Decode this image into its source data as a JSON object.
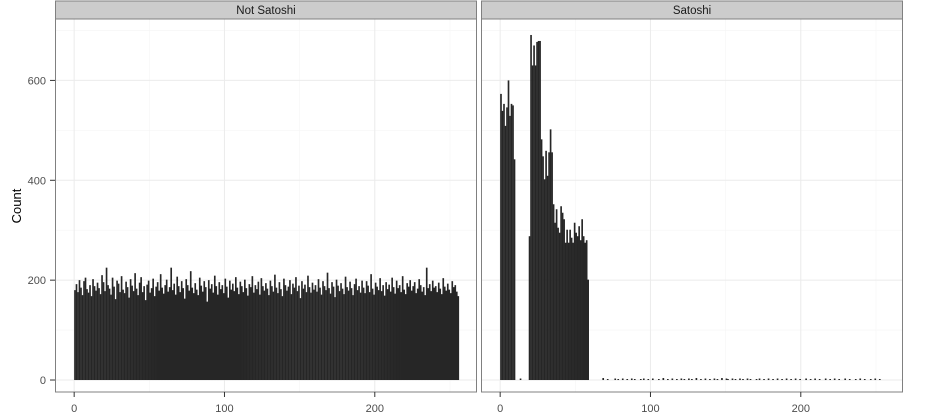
{
  "chart_data": {
    "type": "bar",
    "subtype": "faceted histogram",
    "ylabel": "Count",
    "xlabel": "",
    "xlim": [
      -12.75,
      268
    ],
    "ylim": [
      -24,
      723
    ],
    "x_ticks": [
      "0",
      "100",
      "200"
    ],
    "x_tick_values": [
      0,
      100,
      200
    ],
    "y_ticks": [
      "0",
      "200",
      "400",
      "600"
    ],
    "y_tick_values": [
      0,
      200,
      400,
      600
    ],
    "grid": true,
    "bin_width": 1,
    "colors": {
      "bar": "#262626",
      "strip_fill": "#cccccc",
      "strip_border": "#808080",
      "panel_border": "#808080",
      "grid_major": "#ebebeb",
      "grid_minor": "#f5f5f5"
    },
    "panels": [
      {
        "label": "Not Satoshi",
        "values": [
          180,
          192,
          176,
          200,
          185,
          170,
          198,
          205,
          182,
          175,
          190,
          168,
          202,
          188,
          179,
          195,
          184,
          172,
          210,
          196,
          178,
          225,
          190,
          183,
          171,
          205,
          187,
          162,
          199,
          193,
          176,
          208,
          181,
          174,
          197,
          186,
          165,
          202,
          189,
          178,
          214,
          183,
          170,
          195,
          206,
          176,
          188,
          160,
          191,
          199,
          175,
          184,
          203,
          168,
          187,
          196,
          179,
          212,
          185,
          173,
          190,
          201,
          177,
          186,
          225,
          180,
          193,
          171,
          207,
          188,
          176,
          198,
          184,
          163,
          202,
          190,
          179,
          218,
          185,
          174,
          194,
          181,
          170,
          205,
          189,
          177,
          198,
          186,
          157,
          200,
          183,
          192,
          175,
          209,
          188,
          171,
          196,
          182,
          190,
          174,
          203,
          187,
          165,
          199,
          181,
          193,
          178,
          206,
          185,
          172,
          197,
          188,
          176,
          201,
          184,
          169,
          192,
          186,
          208,
          175,
          190,
          182,
          197,
          171,
          204,
          188,
          179,
          194,
          183,
          170,
          199,
          188,
          177,
          211,
          185,
          174,
          196,
          182,
          168,
          203,
          190,
          179,
          187,
          200,
          172,
          193,
          185,
          206,
          178,
          189,
          164,
          198,
          183,
          191,
          176,
          209,
          186,
          175,
          195,
          181,
          190,
          177,
          202,
          185,
          171,
          198,
          188,
          180,
          215,
          184,
          173,
          196,
          187,
          166,
          201,
          189,
          178,
          194,
          183,
          172,
          207,
          186,
          179,
          197,
          184,
          170,
          192,
          203,
          180,
          188,
          175,
          199,
          185,
          174,
          198,
          189,
          176,
          212,
          183,
          171,
          195,
          187,
          180,
          204,
          178,
          190,
          169,
          196,
          182,
          191,
          177,
          205,
          186,
          173,
          199,
          184,
          190,
          176,
          208,
          181,
          172,
          194,
          187,
          200,
          179,
          188,
          196,
          174,
          183,
          202,
          190,
          177,
          186,
          170,
          225,
          184,
          192,
          178,
          199,
          185,
          188,
          176,
          195,
          183,
          172,
          204,
          187,
          179,
          193,
          181,
          174,
          198,
          186,
          190,
          177,
          168
        ]
      },
      {
        "label": "Satoshi",
        "values": [
          573,
          539,
          553,
          509,
          546,
          600,
          529,
          553,
          550,
          442,
          0,
          0,
          0,
          3,
          0,
          0,
          0,
          0,
          0,
          288,
          691,
          630,
          670,
          630,
          677,
          679,
          679,
          482,
          448,
          402,
          459,
          409,
          456,
          502,
          456,
          352,
          315,
          342,
          305,
          295,
          348,
          335,
          322,
          275,
          301,
          275,
          301,
          285,
          275,
          315,
          295,
          288,
          308,
          280,
          322,
          288,
          275,
          280,
          201,
          0,
          0,
          0,
          0,
          0,
          0,
          0,
          0,
          0,
          4,
          0,
          0,
          2,
          0,
          0,
          0,
          0,
          3,
          0,
          2,
          0,
          0,
          3,
          0,
          0,
          2,
          0,
          0,
          3,
          0,
          2,
          0,
          0,
          0,
          2,
          0,
          3,
          0,
          0,
          2,
          0,
          0,
          3,
          0,
          0,
          0,
          2,
          0,
          0,
          4,
          0,
          0,
          2,
          0,
          0,
          3,
          0,
          0,
          2,
          0,
          0,
          3,
          0,
          2,
          0,
          0,
          3,
          0,
          2,
          0,
          0,
          4,
          0,
          0,
          2,
          0,
          0,
          3,
          0,
          0,
          2,
          0,
          0,
          3,
          0,
          2,
          0,
          0,
          4,
          0,
          0,
          3,
          2,
          0,
          0,
          3,
          0,
          2,
          0,
          0,
          3,
          0,
          2,
          0,
          0,
          3,
          0,
          2,
          0,
          0,
          0,
          2,
          0,
          3,
          0,
          0,
          2,
          0,
          0,
          3,
          0,
          0,
          2,
          0,
          0,
          3,
          0,
          0,
          2,
          0,
          0,
          3,
          0,
          0,
          2,
          0,
          0,
          3,
          0,
          0,
          2,
          0,
          0,
          0,
          3,
          0,
          0,
          2,
          0,
          0,
          3,
          0,
          0,
          2,
          0,
          0,
          0,
          3,
          0,
          0,
          2,
          0,
          0,
          3,
          0,
          0,
          2,
          0,
          0,
          0,
          3,
          0,
          0,
          2,
          0,
          0,
          0,
          2,
          0,
          0,
          3,
          0,
          0,
          2,
          0,
          0,
          0,
          2,
          0,
          0,
          3,
          0,
          0,
          2,
          0,
          0,
          0
        ]
      }
    ]
  }
}
